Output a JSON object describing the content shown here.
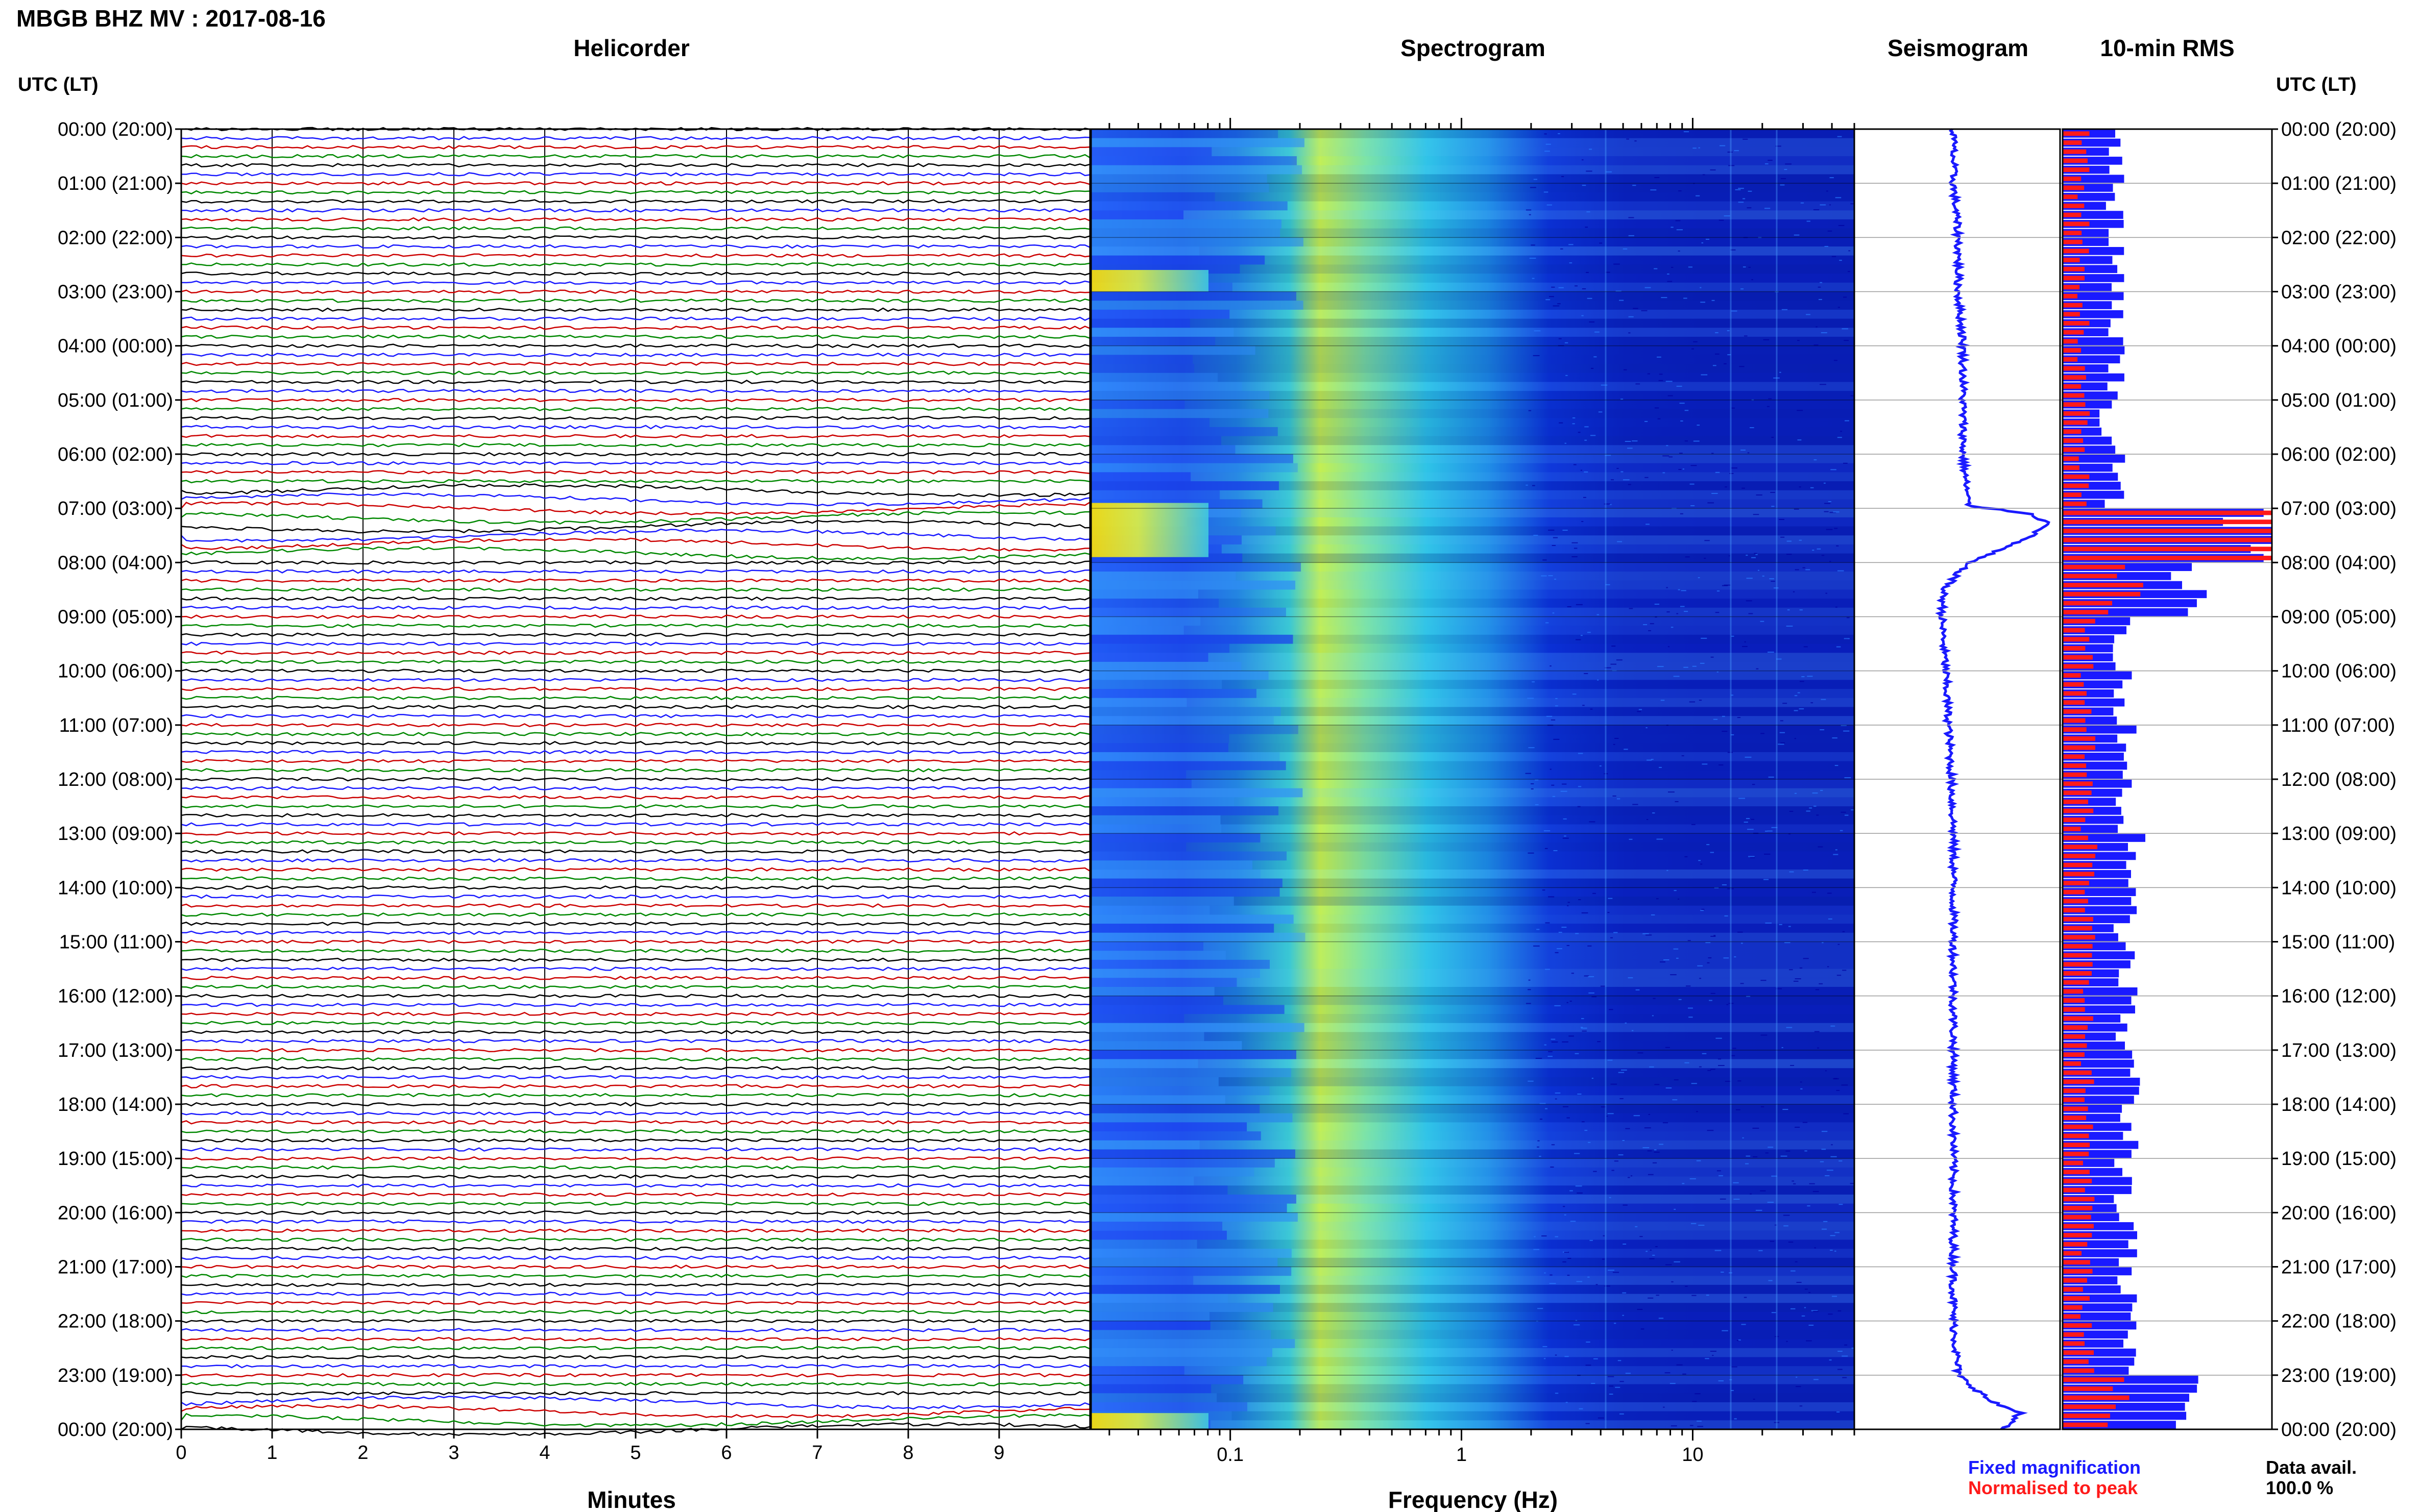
{
  "title": "MBGB BHZ MV : 2017-08-16",
  "panels": {
    "helicorder": "Helicorder",
    "spectrogram": "Spectrogram",
    "seismogram": "Seismogram",
    "rms": "10-min RMS"
  },
  "left_axis_header": "UTC (LT)",
  "right_axis_header": "UTC (LT)",
  "time_labels": [
    "00:00 (20:00)",
    "01:00 (21:00)",
    "02:00 (22:00)",
    "03:00 (23:00)",
    "04:00 (00:00)",
    "05:00 (01:00)",
    "06:00 (02:00)",
    "07:00 (03:00)",
    "08:00 (04:00)",
    "09:00 (05:00)",
    "10:00 (06:00)",
    "11:00 (07:00)",
    "12:00 (08:00)",
    "13:00 (09:00)",
    "14:00 (10:00)",
    "15:00 (11:00)",
    "16:00 (12:00)",
    "17:00 (13:00)",
    "18:00 (14:00)",
    "19:00 (15:00)",
    "20:00 (16:00)",
    "21:00 (17:00)",
    "22:00 (18:00)",
    "23:00 (19:00)",
    "00:00 (20:00)"
  ],
  "helicorder_xlabel": "Minutes",
  "helicorder_ticks": [
    "0",
    "1",
    "2",
    "3",
    "4",
    "5",
    "6",
    "7",
    "8",
    "9"
  ],
  "spectrogram_xlabel": "Frequency (Hz)",
  "spectrogram_ticks": [
    "0.1",
    "1",
    "10"
  ],
  "legend": {
    "fixed": "Fixed magnification",
    "normalised": "Normalised to peak",
    "fixed_color": "#1a1aff",
    "normalised_color": "#ff1a1a"
  },
  "data_avail_label": "Data avail.",
  "data_avail_value": "100.0 %",
  "trace_colors": [
    "#000000",
    "#1a1aff",
    "#cc0000",
    "#008800"
  ],
  "chart_data": [
    {
      "type": "line",
      "panel": "Helicorder",
      "x_unit": "minutes",
      "xlim": [
        0,
        10
      ],
      "rows_per_hour": 6,
      "hours": 24,
      "note": "10-minute traces stacked per row; colors cycle black, blue, red, green",
      "long_period_disturbance_hours": [
        7.0,
        7.5,
        23.8
      ]
    },
    {
      "type": "heatmap",
      "panel": "Spectrogram",
      "x_scale": "log",
      "xlim": [
        0.025,
        50
      ],
      "ylim_hours": [
        0,
        24
      ],
      "colormap": [
        "#00008b",
        "#0000ff",
        "#1e90ff",
        "#00ffff",
        "#ffff00"
      ],
      "peak_band_hz": [
        0.15,
        0.3
      ],
      "high_energy_blocks_hours": [
        [
          2.6,
          3.0
        ],
        [
          6.9,
          7.9
        ],
        [
          23.7,
          24.0
        ]
      ]
    },
    {
      "type": "line",
      "panel": "Seismogram",
      "description_values_hours": [
        0,
        1,
        2,
        3,
        4,
        5,
        6,
        6.95,
        7.1,
        7.3,
        7.6,
        8.0,
        8.5,
        9,
        10,
        11,
        12,
        13,
        14,
        15,
        16,
        17,
        18,
        19,
        20,
        21,
        22,
        23,
        23.5,
        23.7,
        24
      ],
      "offset": [
        0.0,
        0.0,
        0.05,
        0.05,
        0.1,
        0.1,
        0.1,
        0.15,
        0.8,
        1.0,
        0.7,
        0.15,
        -0.1,
        -0.12,
        -0.08,
        -0.05,
        -0.02,
        0.0,
        0.0,
        0.0,
        0.0,
        0.0,
        0.0,
        0.0,
        0.0,
        0.0,
        0.0,
        0.05,
        0.4,
        0.7,
        0.5
      ]
    },
    {
      "type": "bar",
      "panel": "10-min RMS",
      "interval_minutes": 10,
      "series": [
        {
          "name": "Fixed magnification",
          "color": "#1a1aff"
        },
        {
          "name": "Normalised to peak",
          "color": "#ff1a1a"
        }
      ],
      "hourly_fixed": [
        0.25,
        0.25,
        0.25,
        0.25,
        0.25,
        0.22,
        0.25,
        0.9,
        0.6,
        0.3,
        0.3,
        0.3,
        0.3,
        0.35,
        0.3,
        0.3,
        0.3,
        0.32,
        0.32,
        0.3,
        0.3,
        0.3,
        0.3,
        0.6,
        0.5
      ],
      "hourly_normalised": [
        0.1,
        0.1,
        0.1,
        0.1,
        0.1,
        0.1,
        0.1,
        1.0,
        0.3,
        0.12,
        0.12,
        0.12,
        0.12,
        0.15,
        0.12,
        0.12,
        0.12,
        0.12,
        0.12,
        0.12,
        0.12,
        0.12,
        0.12,
        0.3,
        0.3
      ],
      "peak_hour": 7.0
    }
  ]
}
